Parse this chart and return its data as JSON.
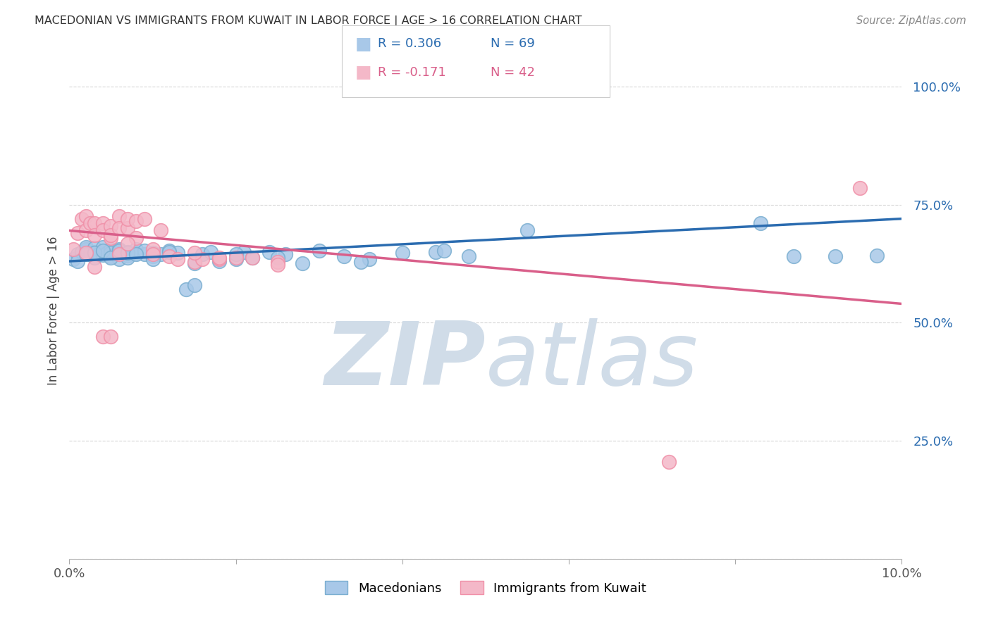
{
  "title": "MACEDONIAN VS IMMIGRANTS FROM KUWAIT IN LABOR FORCE | AGE > 16 CORRELATION CHART",
  "source": "Source: ZipAtlas.com",
  "ylabel": "In Labor Force | Age > 16",
  "xlim": [
    0.0,
    0.1
  ],
  "ylim": [
    0.0,
    1.05
  ],
  "blue_R": 0.306,
  "blue_N": 69,
  "pink_R": -0.171,
  "pink_N": 42,
  "blue_color": "#a8c8e8",
  "pink_color": "#f4b8c8",
  "blue_edge_color": "#7aaed0",
  "pink_edge_color": "#f090a8",
  "blue_line_color": "#2b6cb0",
  "pink_line_color": "#d95f8a",
  "legend_blue_label": "Macedonians",
  "legend_pink_label": "Immigrants from Kuwait",
  "blue_points_x": [
    0.0005,
    0.001,
    0.0015,
    0.002,
    0.002,
    0.0025,
    0.003,
    0.003,
    0.003,
    0.0035,
    0.004,
    0.004,
    0.004,
    0.0045,
    0.005,
    0.005,
    0.005,
    0.006,
    0.006,
    0.006,
    0.007,
    0.007,
    0.007,
    0.008,
    0.008,
    0.009,
    0.009,
    0.01,
    0.01,
    0.011,
    0.012,
    0.013,
    0.014,
    0.015,
    0.016,
    0.017,
    0.018,
    0.02,
    0.021,
    0.022,
    0.024,
    0.026,
    0.028,
    0.03,
    0.033,
    0.036,
    0.04,
    0.044,
    0.048,
    0.055,
    0.001,
    0.002,
    0.003,
    0.004,
    0.005,
    0.006,
    0.007,
    0.008,
    0.01,
    0.012,
    0.015,
    0.02,
    0.025,
    0.035,
    0.045,
    0.083,
    0.087,
    0.092,
    0.097
  ],
  "blue_points_y": [
    0.635,
    0.645,
    0.65,
    0.655,
    0.66,
    0.648,
    0.638,
    0.65,
    0.658,
    0.645,
    0.65,
    0.643,
    0.66,
    0.648,
    0.655,
    0.64,
    0.648,
    0.635,
    0.648,
    0.655,
    0.642,
    0.65,
    0.638,
    0.648,
    0.655,
    0.645,
    0.652,
    0.64,
    0.648,
    0.645,
    0.652,
    0.648,
    0.57,
    0.58,
    0.645,
    0.65,
    0.63,
    0.635,
    0.65,
    0.638,
    0.65,
    0.645,
    0.625,
    0.652,
    0.64,
    0.635,
    0.648,
    0.65,
    0.64,
    0.695,
    0.63,
    0.645,
    0.648,
    0.652,
    0.638,
    0.652,
    0.648,
    0.645,
    0.635,
    0.65,
    0.625,
    0.645,
    0.638,
    0.628,
    0.652,
    0.71,
    0.64,
    0.64,
    0.642
  ],
  "pink_points_x": [
    0.0005,
    0.001,
    0.0015,
    0.002,
    0.002,
    0.0025,
    0.003,
    0.003,
    0.004,
    0.004,
    0.005,
    0.005,
    0.005,
    0.006,
    0.006,
    0.007,
    0.007,
    0.008,
    0.008,
    0.009,
    0.01,
    0.011,
    0.012,
    0.013,
    0.015,
    0.016,
    0.018,
    0.02,
    0.022,
    0.025,
    0.002,
    0.003,
    0.004,
    0.005,
    0.006,
    0.007,
    0.01,
    0.015,
    0.018,
    0.025,
    0.072,
    0.095
  ],
  "pink_points_y": [
    0.655,
    0.69,
    0.72,
    0.725,
    0.695,
    0.71,
    0.71,
    0.685,
    0.71,
    0.695,
    0.68,
    0.705,
    0.685,
    0.725,
    0.7,
    0.7,
    0.72,
    0.68,
    0.715,
    0.72,
    0.655,
    0.695,
    0.64,
    0.635,
    0.628,
    0.635,
    0.635,
    0.638,
    0.638,
    0.628,
    0.648,
    0.618,
    0.47,
    0.47,
    0.645,
    0.668,
    0.645,
    0.648,
    0.638,
    0.622,
    0.205,
    0.785
  ],
  "blue_trendline_x": [
    0.0,
    0.1
  ],
  "blue_trendline_y": [
    0.63,
    0.72
  ],
  "pink_trendline_x": [
    0.0,
    0.1
  ],
  "pink_trendline_y": [
    0.695,
    0.54
  ],
  "watermark_zip": "ZIP",
  "watermark_atlas": "atlas",
  "watermark_color": "#d0dce8",
  "background_color": "#ffffff",
  "grid_color": "#cccccc"
}
